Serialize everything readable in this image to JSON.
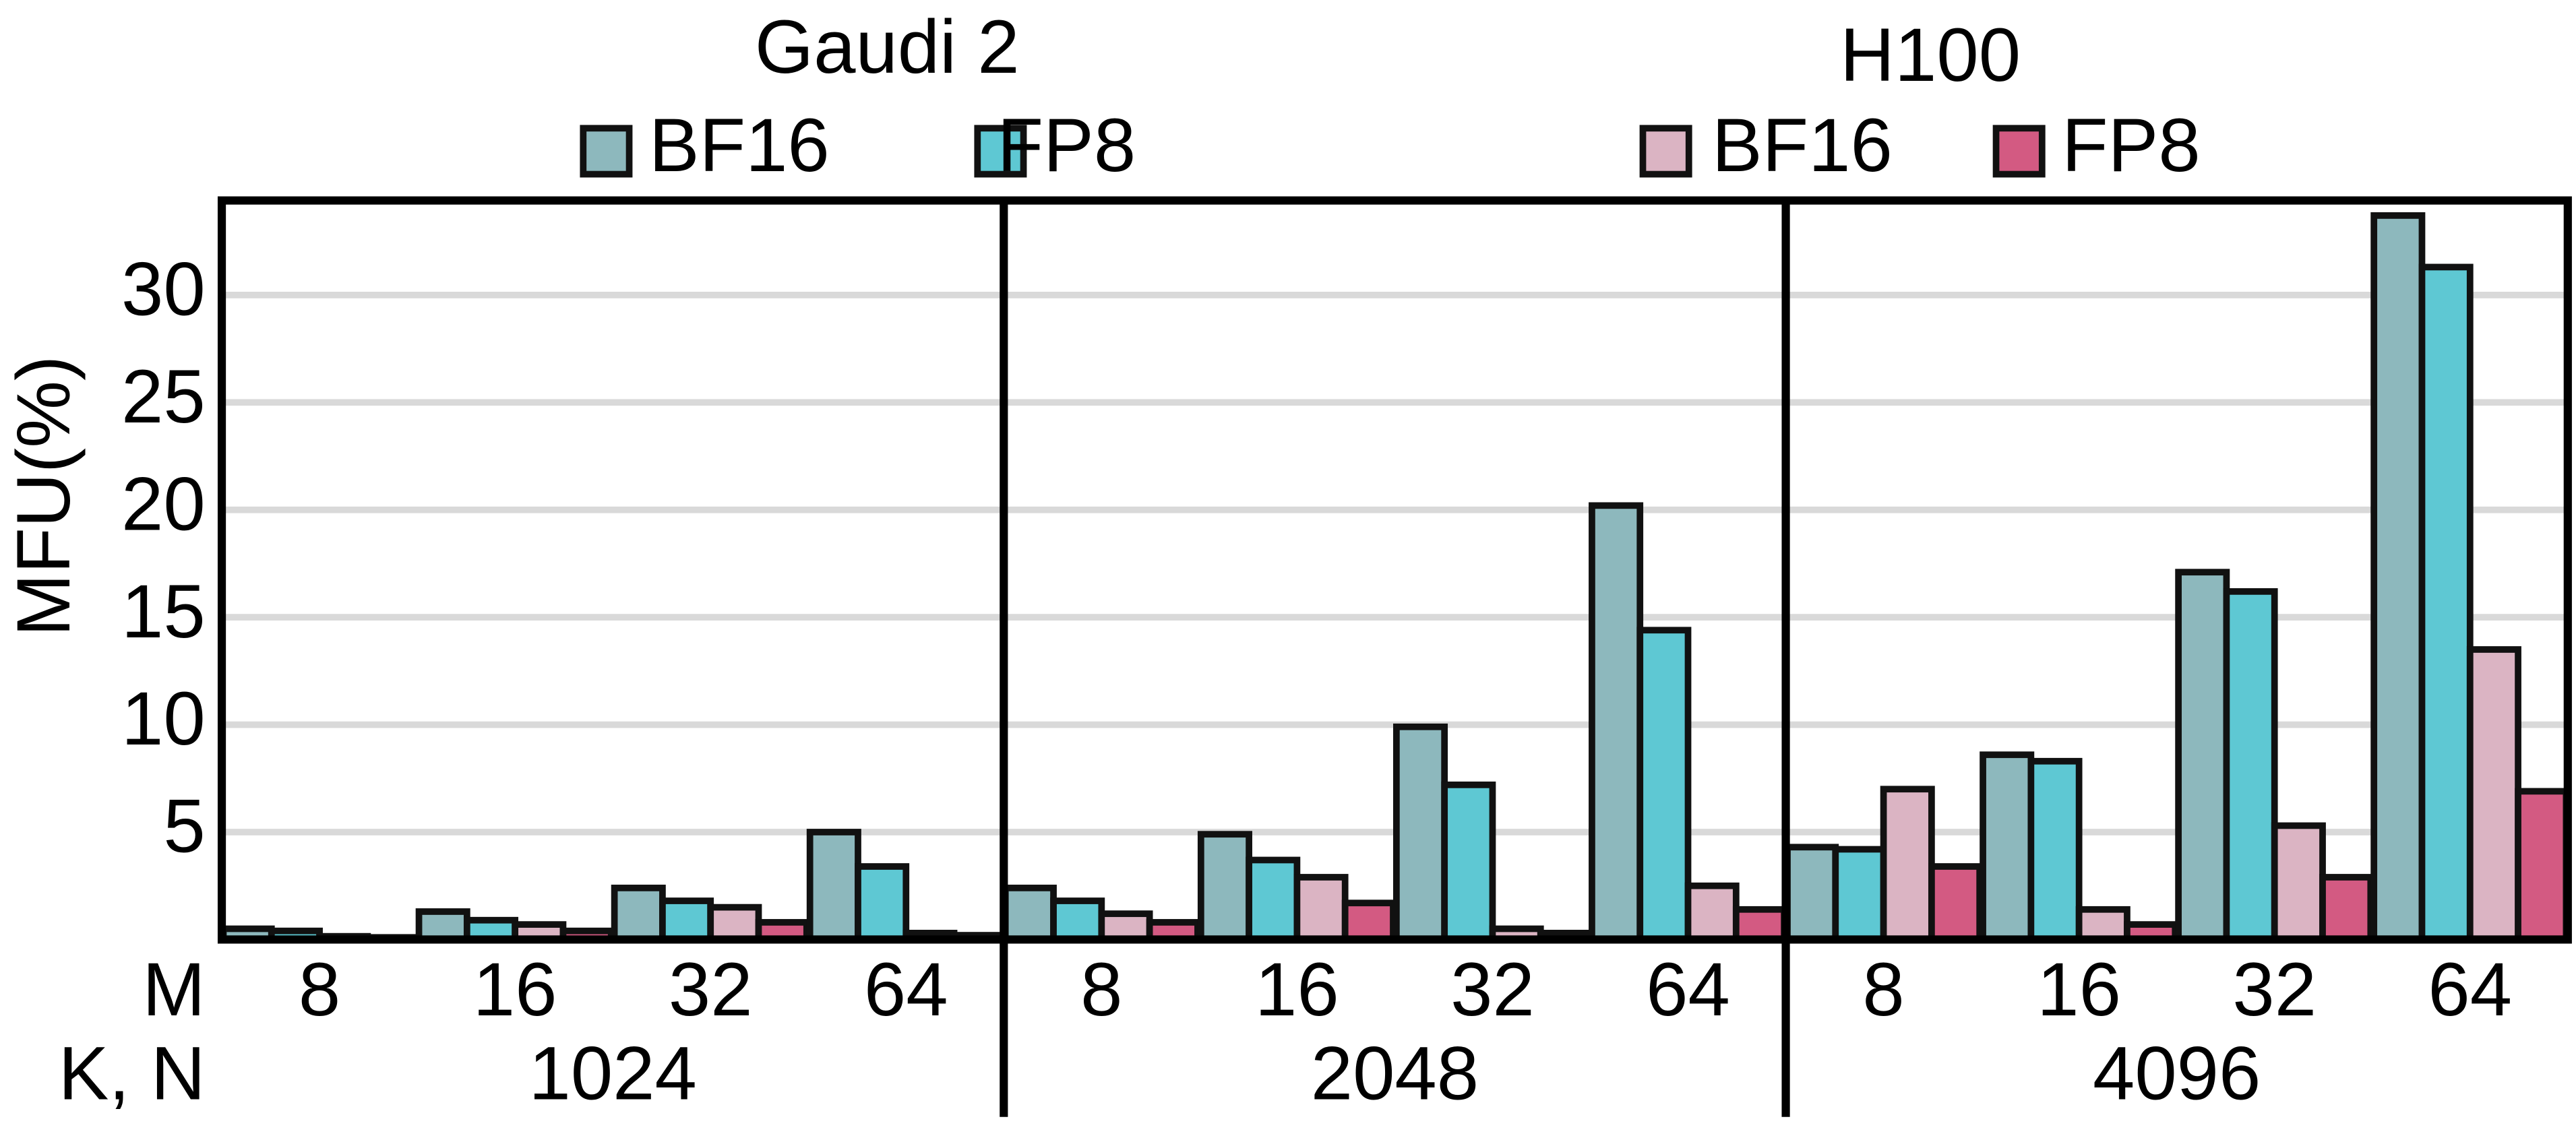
{
  "chart_data": {
    "type": "bar",
    "y_label": "MFU(%)",
    "x_labels": [
      "M",
      "K, N"
    ],
    "x_group_labels": [
      "1024",
      "2048",
      "4096"
    ],
    "categories": [
      "8",
      "16",
      "32",
      "64",
      "8",
      "16",
      "32",
      "64",
      "8",
      "16",
      "32",
      "64"
    ],
    "series": [
      {
        "group": "Gaudi 2",
        "name": "BF16",
        "color": "#8db8bd",
        "values": [
          0.5,
          1.3,
          2.4,
          5.0,
          2.4,
          4.9,
          9.9,
          20.2,
          4.3,
          8.6,
          17.1,
          33.7
        ]
      },
      {
        "group": "Gaudi 2",
        "name": "FP8",
        "color": "#5ec8d3",
        "values": [
          0.4,
          0.9,
          1.8,
          3.4,
          1.8,
          3.7,
          7.2,
          14.4,
          4.2,
          8.3,
          16.2,
          31.3
        ]
      },
      {
        "group": "H100",
        "name": "BF16",
        "color": "#dbb4c3",
        "values": [
          0.15,
          0.7,
          1.5,
          0.3,
          1.2,
          2.9,
          0.5,
          2.5,
          7.0,
          1.4,
          5.3,
          13.5
        ]
      },
      {
        "group": "H100",
        "name": "FP8",
        "color": "#d35a82",
        "values": [
          0.1,
          0.4,
          0.8,
          0.2,
          0.8,
          1.7,
          0.3,
          1.4,
          3.4,
          0.7,
          2.9,
          6.9
        ]
      }
    ],
    "ylim": [
      0,
      34.4
    ],
    "yticks": [
      5,
      10,
      15,
      20,
      25,
      30
    ],
    "grid": true
  }
}
